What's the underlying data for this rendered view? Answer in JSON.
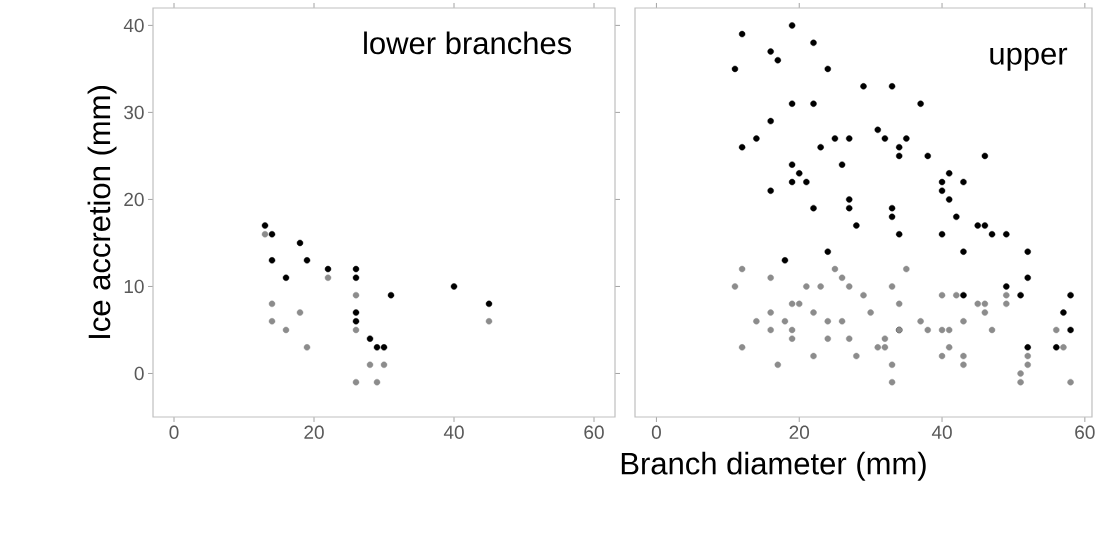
{
  "chart_data": [
    {
      "type": "scatter",
      "title": "lower branches",
      "ylabel": "Ice accretion (mm)",
      "xlim": [
        -3,
        63
      ],
      "ylim": [
        -5,
        42
      ],
      "xticks": [
        0,
        20,
        40,
        60
      ],
      "yticks": [
        0,
        10,
        20,
        30,
        40
      ],
      "marker": "circle",
      "series": [
        {
          "color": "#000000",
          "x": [
            13,
            14,
            14,
            18,
            19,
            16,
            22,
            26,
            26,
            26,
            26,
            28,
            29,
            30,
            31,
            40,
            45
          ],
          "values": [
            17,
            16,
            13,
            15,
            13,
            11,
            12,
            12,
            11,
            7,
            6,
            4,
            3,
            3,
            9,
            10,
            8
          ]
        },
        {
          "color": "#8c8c8c",
          "x": [
            13,
            14,
            14,
            16,
            18,
            19,
            22,
            26,
            26,
            28,
            30,
            26,
            29,
            45
          ],
          "values": [
            16,
            8,
            6,
            5,
            7,
            3,
            11,
            9,
            5,
            1,
            1,
            -1,
            -1,
            6
          ]
        }
      ]
    },
    {
      "type": "scatter",
      "title": "upper",
      "xlabel": "Branch diameter (mm)",
      "xlim": [
        -3,
        61
      ],
      "ylim": [
        -5,
        42
      ],
      "xticks": [
        0,
        20,
        40,
        60
      ],
      "yticks": [
        0,
        10,
        20,
        30,
        40
      ],
      "tick_labels": "x",
      "marker": "circle",
      "series": [
        {
          "color": "#000000",
          "x": [
            12,
            19,
            22,
            16,
            17,
            11,
            24,
            29,
            33,
            19,
            22,
            37,
            16,
            14,
            12,
            23,
            25,
            27,
            31,
            32,
            35,
            34,
            34,
            38,
            46,
            19,
            20,
            19,
            21,
            26,
            16,
            41,
            40,
            40,
            43,
            41,
            22,
            27,
            27,
            33,
            33,
            42,
            28,
            45,
            46,
            34,
            40,
            47,
            49,
            24,
            43,
            52,
            18,
            52,
            49,
            51,
            43,
            58,
            57,
            58,
            52,
            56,
            34
          ],
          "values": [
            39,
            40,
            38,
            37,
            36,
            35,
            35,
            33,
            33,
            31,
            31,
            31,
            29,
            27,
            26,
            26,
            27,
            27,
            28,
            27,
            27,
            26,
            25,
            25,
            25,
            24,
            23,
            22,
            22,
            24,
            21,
            23,
            22,
            21,
            22,
            20,
            19,
            20,
            19,
            19,
            18,
            18,
            17,
            17,
            17,
            16,
            16,
            16,
            16,
            14,
            14,
            14,
            13,
            11,
            10,
            9,
            9,
            9,
            7,
            5,
            3,
            3,
            5
          ]
        },
        {
          "color": "#8c8c8c",
          "x": [
            12,
            11,
            16,
            21,
            23,
            25,
            26,
            27,
            29,
            33,
            35,
            19,
            20,
            22,
            30,
            34,
            14,
            16,
            18,
            19,
            24,
            26,
            16,
            12,
            19,
            24,
            27,
            32,
            31,
            32,
            22,
            28,
            17,
            33,
            33,
            37,
            38,
            40,
            41,
            43,
            40,
            42,
            45,
            46,
            46,
            47,
            49,
            49,
            40,
            41,
            43,
            43,
            51,
            51,
            52,
            52,
            56,
            57,
            58,
            34
          ],
          "values": [
            12,
            10,
            11,
            10,
            10,
            12,
            11,
            10,
            9,
            10,
            12,
            8,
            8,
            7,
            7,
            8,
            6,
            7,
            6,
            5,
            6,
            6,
            5,
            3,
            4,
            4,
            4,
            4,
            3,
            3,
            2,
            2,
            1,
            1,
            -1,
            6,
            5,
            5,
            5,
            6,
            9,
            9,
            8,
            8,
            7,
            5,
            9,
            8,
            2,
            3,
            2,
            1,
            0,
            -1,
            1,
            2,
            5,
            3,
            -1,
            5
          ]
        }
      ]
    }
  ]
}
